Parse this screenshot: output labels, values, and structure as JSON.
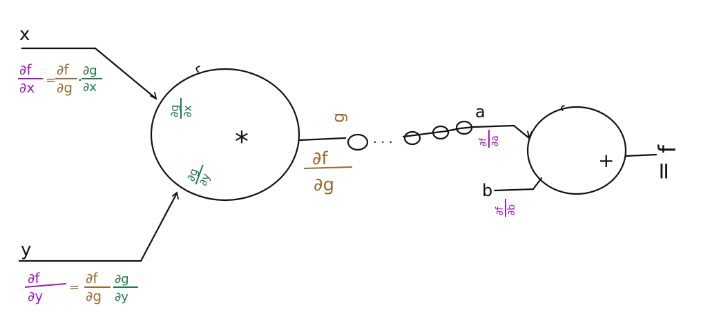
{
  "colors": {
    "ink": "#111111",
    "purple": "#9b1bbf",
    "brown": "#9a6a2a",
    "green": "#1d7a4a"
  },
  "nodes": {
    "mult": {
      "op": "*"
    },
    "add": {
      "op": "+"
    }
  },
  "inputs": {
    "x": "x",
    "y": "y",
    "a": "a",
    "b": "b"
  },
  "edge_g": {
    "label": "g",
    "grad_num": "∂f",
    "grad_den": "∂g"
  },
  "local_grads": {
    "dg_dx_num": "∂g",
    "dg_dx_den": "∂x",
    "dg_dy_num": "∂g",
    "dg_dy_den": "∂y",
    "df_da_num": "∂f",
    "df_da_den": "∂a",
    "df_db_num": "∂f",
    "df_db_den": "∂b"
  },
  "chain_x": {
    "lhs_num": "∂f",
    "lhs_den": "∂x",
    "eq": "=",
    "r1_num": "∂f",
    "r1_den": "∂g",
    "dot": "·",
    "r2_num": "∂g",
    "r2_den": "∂x"
  },
  "chain_y": {
    "lhs_num": "∂f",
    "lhs_den": "∂y",
    "eq": "=",
    "r1_num": "∂f",
    "r1_den": "∂g",
    "r2_num": "∂g",
    "r2_den": "∂y"
  },
  "output": {
    "label": "f",
    "eq": "="
  },
  "chain_dots": "· · ·"
}
